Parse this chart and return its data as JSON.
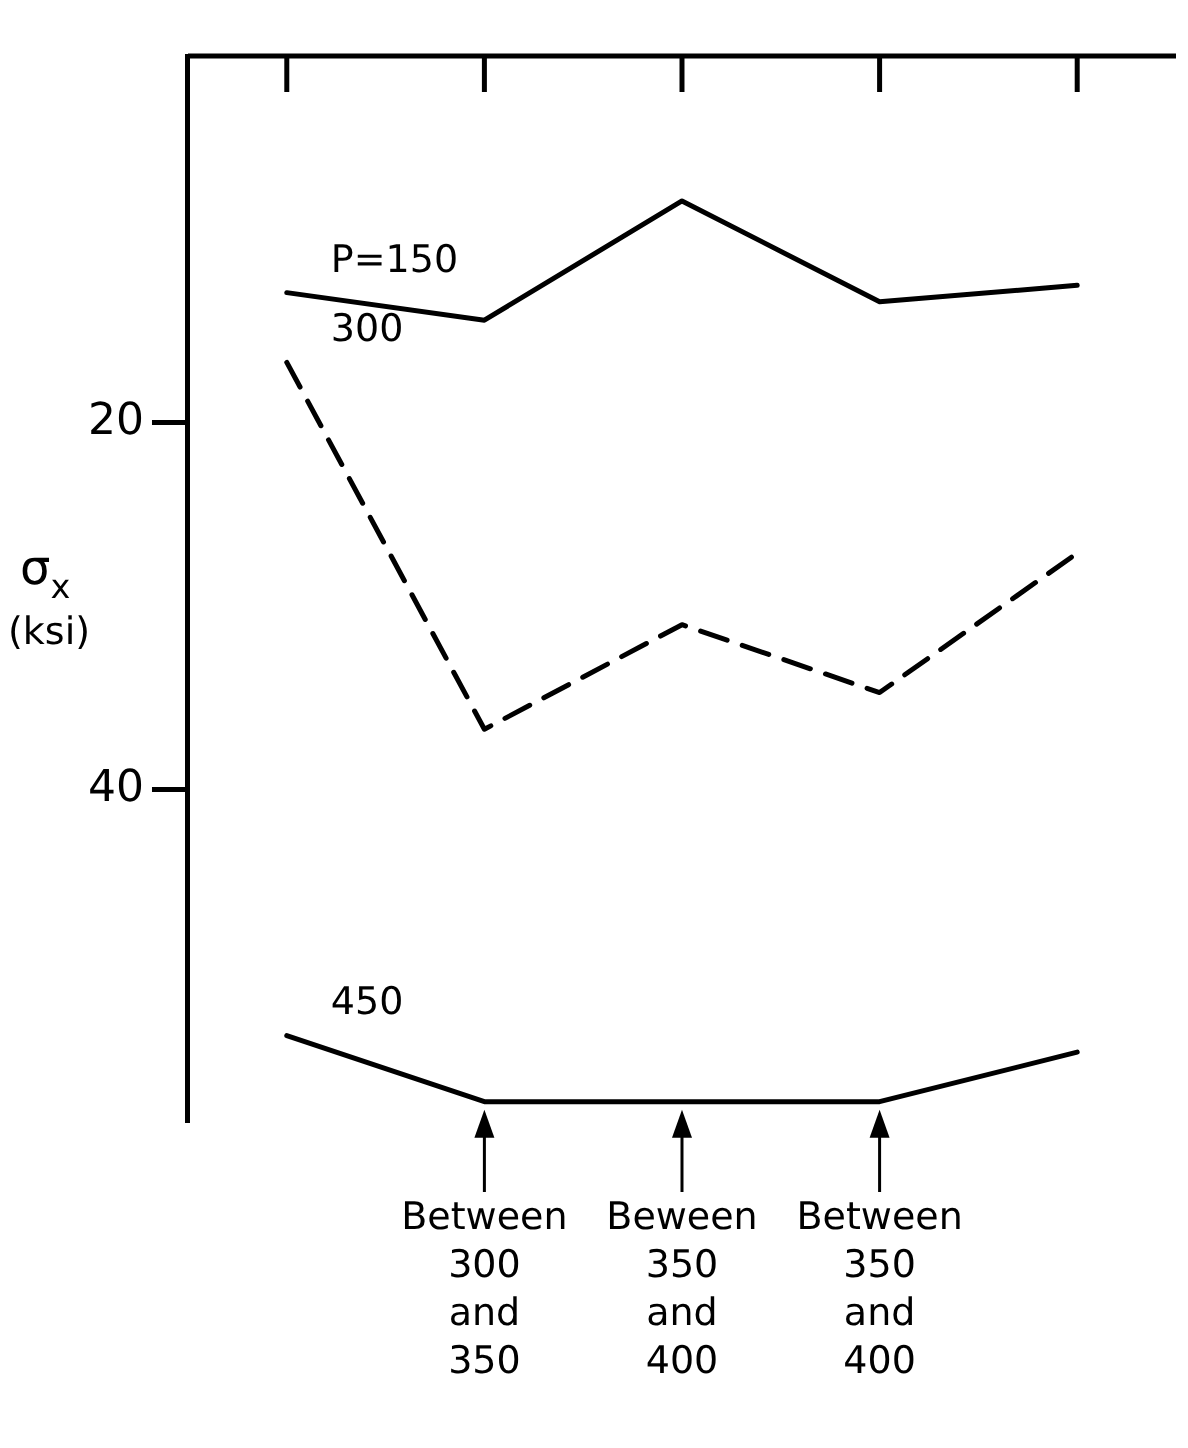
{
  "chart_data": {
    "type": "line",
    "ylabel": "σ$_{x}$ (ksi)",
    "categories": [
      null,
      "Between 300 and 350",
      "Beween 350 and 400",
      "Between 350 and 400",
      null
    ],
    "series": [
      {
        "name": "P=150",
        "color": "#000000",
        "line_style": "solid",
        "values": [
          12.9,
          14.4,
          7.9,
          13.4,
          12.5
        ]
      },
      {
        "name": "300",
        "color": "#000000",
        "line_style": "dashed",
        "values": [
          16.7,
          36.7,
          31.0,
          34.7,
          27.1
        ]
      },
      {
        "name": "450",
        "color": "#000000",
        "line_style": "solid",
        "values": [
          53.4,
          57.0,
          57.0,
          57.0,
          54.3
        ]
      }
    ],
    "ylim": [
      58,
      0
    ],
    "yticks": [
      20,
      40
    ],
    "grid": false,
    "legend": false,
    "marker": "none"
  }
}
